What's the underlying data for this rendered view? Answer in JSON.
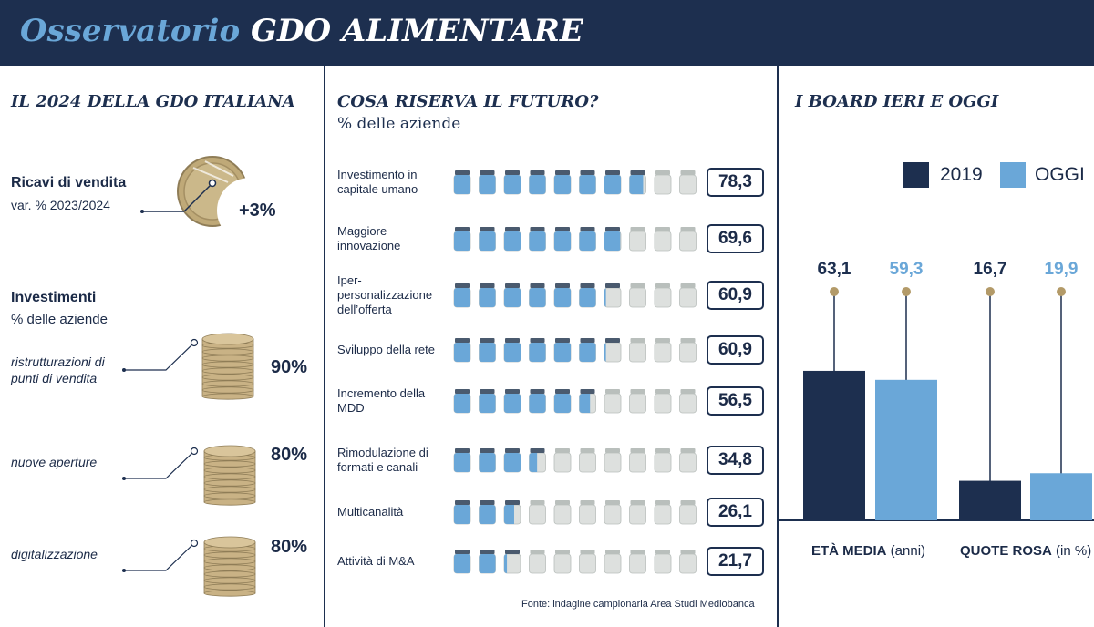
{
  "header": {
    "title_italic": "Osservatorio",
    "title_bold": "GDO ALIMENTARE"
  },
  "colors": {
    "navy": "#1d2f4f",
    "light_blue": "#6aa7d8",
    "gold": "#c9b285",
    "grey_jar": "#dde0de"
  },
  "left": {
    "title": "IL 2024 DELLA GDO ITALIANA",
    "revenue": {
      "label": "Ricavi di vendita",
      "sublabel": "var. % 2023/2024",
      "value": "+3%",
      "icon": "coin-pie-icon"
    },
    "investments": {
      "label": "Investimenti",
      "sublabel": "% delle aziende",
      "items": [
        {
          "label": "ristrutturazioni di punti di vendita",
          "value": "90%",
          "coins": 9
        },
        {
          "label": "nuove aperture",
          "value": "80%",
          "coins": 8
        },
        {
          "label": "digitalizzazione",
          "value": "80%",
          "coins": 8
        }
      ]
    }
  },
  "middle": {
    "title": "COSA RISERVA IL FUTURO?",
    "subtitle": "% delle aziende",
    "source": "Fonte: indagine campionaria Area Studi Mediobanca"
  },
  "right": {
    "title": "I BOARD IERI E OGGI"
  },
  "chart_data": [
    {
      "type": "bar",
      "title": "COSA RISERVA IL FUTURO?",
      "unit": "% delle aziende",
      "jars_per_row": 10,
      "categories": [
        "Investimento in capitale umano",
        "Maggiore innovazione",
        "Iper-personalizzazione dell’offerta",
        "Sviluppo della rete",
        "Incremento della MDD",
        "Rimodulazione di formati e canali",
        "Multicanalità",
        "Attività di M&A"
      ],
      "values": [
        78.3,
        69.6,
        60.9,
        60.9,
        56.5,
        34.8,
        26.1,
        21.7
      ],
      "labels": [
        "78,3",
        "69,6",
        "60,9",
        "60,9",
        "56,5",
        "34,8",
        "26,1",
        "21,7"
      ],
      "ylim": [
        0,
        100
      ]
    },
    {
      "type": "bar",
      "title": "I BOARD IERI E OGGI",
      "categories": [
        "ETÀ MEDIA",
        "QUOTE ROSA"
      ],
      "category_units": [
        "(anni)",
        "(in %)"
      ],
      "series": [
        {
          "name": "2019",
          "values": [
            63.1,
            16.7
          ],
          "labels": [
            "63,1",
            "16,7"
          ],
          "color": "#1d2f4f"
        },
        {
          "name": "OGGI",
          "values": [
            59.3,
            19.9
          ],
          "labels": [
            "59,3",
            "19,9"
          ],
          "color": "#6aa7d8"
        }
      ],
      "legend": "top-right"
    }
  ]
}
